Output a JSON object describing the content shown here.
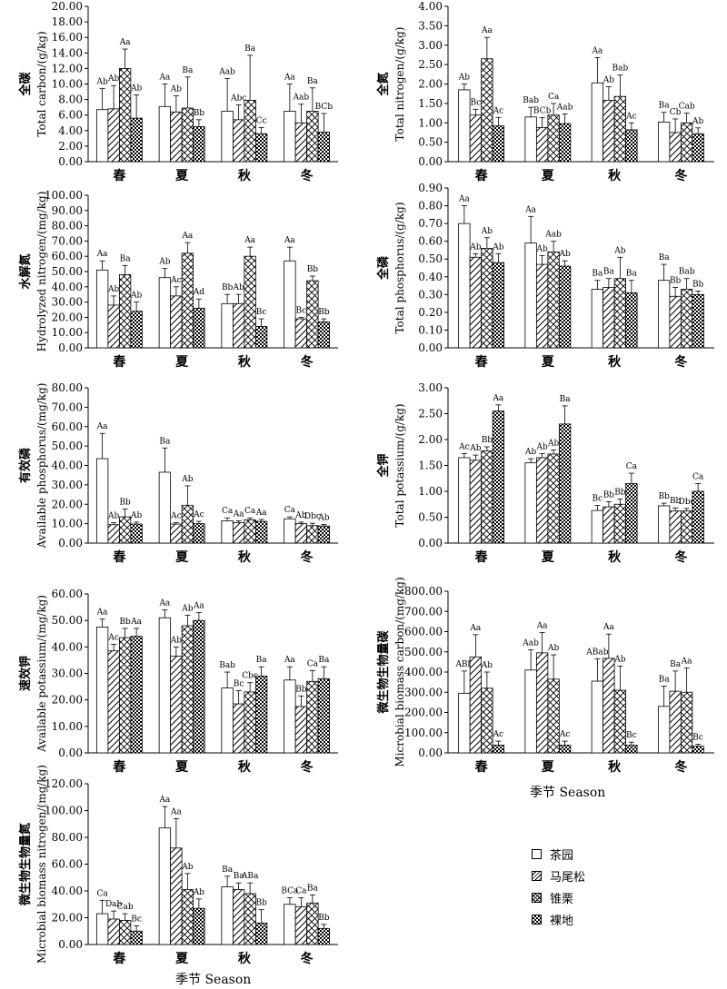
{
  "legend": {
    "items": [
      {
        "label": "茶园",
        "pattern": "blank"
      },
      {
        "label": "马尾松",
        "pattern": "diagonal"
      },
      {
        "label": "锥栗",
        "pattern": "crosshatch"
      },
      {
        "label": "裸地",
        "pattern": "checker"
      }
    ]
  },
  "x_axis_title_right": "季节 Season",
  "x_axis_title_bottom": "季节 Season",
  "chart_data": [
    {
      "type": "bar",
      "ylabel_cn": "全碳",
      "ylabel_en": "Total carbon/(g/kg)",
      "ylim": [
        0,
        20
      ],
      "yticks": [
        "0.00",
        "2.00",
        "4.00",
        "6.00",
        "8.00",
        "10.00",
        "12.00",
        "14.00",
        "16.00",
        "18.00",
        "20.00"
      ],
      "categories": [
        "春",
        "夏",
        "秋",
        "冬"
      ],
      "series": [
        {
          "name": "茶园",
          "values": [
            6.7,
            7.1,
            6.5,
            6.5
          ],
          "errors": [
            2.7,
            2.9,
            4.2,
            3.5
          ]
        },
        {
          "name": "马尾松",
          "values": [
            6.8,
            6.4,
            5.4,
            5.0
          ],
          "errors": [
            3.0,
            2.1,
            1.9,
            2.4
          ]
        },
        {
          "name": "锥栗",
          "values": [
            12.0,
            6.9,
            7.9,
            6.5
          ],
          "errors": [
            2.5,
            4.0,
            5.8,
            3.0
          ]
        },
        {
          "name": "裸地",
          "values": [
            5.6,
            4.5,
            3.6,
            3.8
          ],
          "errors": [
            3.0,
            0.9,
            0.8,
            2.4
          ]
        }
      ],
      "labels": [
        [
          "Ab",
          "Aa",
          "Aab",
          "Aa"
        ],
        [
          "Ab",
          "Ab",
          "Abc",
          "Aab"
        ],
        [
          "Aa",
          "Ba",
          "Ba",
          "Ba"
        ],
        [
          "Ab",
          "Bb",
          "Cc",
          "BCb"
        ]
      ],
      "xlabel": ""
    },
    {
      "type": "bar",
      "ylabel_cn": "全氮",
      "ylabel_en": "Total nitrogen/(g/kg)",
      "ylim": [
        0,
        4
      ],
      "yticks": [
        "0.00",
        "0.50",
        "1.00",
        "1.50",
        "2.00",
        "2.50",
        "3.00",
        "3.50",
        "4.00"
      ],
      "categories": [
        "春",
        "夏",
        "秋",
        "冬"
      ],
      "series": [
        {
          "name": "茶园",
          "values": [
            1.85,
            1.15,
            2.03,
            1.02
          ],
          "errors": [
            0.15,
            0.25,
            0.65,
            0.25
          ]
        },
        {
          "name": "马尾松",
          "values": [
            1.2,
            0.88,
            1.58,
            0.75
          ],
          "errors": [
            0.15,
            0.25,
            0.35,
            0.35
          ]
        },
        {
          "name": "锥栗",
          "values": [
            2.65,
            1.2,
            1.68,
            1.0
          ],
          "errors": [
            0.55,
            0.3,
            0.55,
            0.25
          ]
        },
        {
          "name": "裸地",
          "values": [
            0.92,
            0.98,
            0.82,
            0.72
          ],
          "errors": [
            0.22,
            0.25,
            0.18,
            0.15
          ]
        }
      ],
      "labels": [
        [
          "Ab",
          "Bab",
          "Aa",
          "Ba"
        ],
        [
          "Bc",
          "BCb",
          "Ab",
          "Cb"
        ],
        [
          "Aa",
          "Ca",
          "Bab",
          "Cab"
        ],
        [
          "Ac",
          "Aab",
          "Ac",
          "Ab"
        ]
      ],
      "xlabel": ""
    },
    {
      "type": "bar",
      "ylabel_cn": "水解氮",
      "ylabel_en": "Hydrolyzed nitrogen/(mg/kg)",
      "ylim": [
        0,
        100
      ],
      "yticks": [
        "0.00",
        "10.00",
        "20.00",
        "30.00",
        "40.00",
        "50.00",
        "60.00",
        "70.00",
        "80.00",
        "90.00",
        "100.00"
      ],
      "categories": [
        "春",
        "夏",
        "秋",
        "冬"
      ],
      "series": [
        {
          "name": "茶园",
          "values": [
            51,
            46,
            29,
            57
          ],
          "errors": [
            6,
            6,
            6,
            9
          ]
        },
        {
          "name": "马尾松",
          "values": [
            28,
            34,
            29,
            19
          ],
          "errors": [
            6,
            6,
            6,
            1
          ]
        },
        {
          "name": "锥栗",
          "values": [
            48,
            62,
            60,
            44
          ],
          "errors": [
            6,
            7,
            6,
            3
          ]
        },
        {
          "name": "裸地",
          "values": [
            24,
            26,
            14,
            17
          ],
          "errors": [
            6,
            6,
            5,
            2
          ]
        }
      ],
      "labels": [
        [
          "Aa",
          "Ab",
          "Bb",
          "Aa"
        ],
        [
          "Ab",
          "Ac",
          "Ab",
          "Bc"
        ],
        [
          "Ba",
          "Aa",
          "Aa",
          "Bb"
        ],
        [
          "Ab",
          "Ad",
          "Bc",
          "Bb"
        ]
      ],
      "xlabel": ""
    },
    {
      "type": "bar",
      "ylabel_cn": "全磷",
      "ylabel_en": "Total phosphorus/(g/kg)",
      "ylim": [
        0,
        0.9
      ],
      "yticks": [
        "0.00",
        "0.10",
        "0.20",
        "0.30",
        "0.40",
        "0.50",
        "0.60",
        "0.70",
        "0.80",
        "0.90"
      ],
      "categories": [
        "春",
        "夏",
        "秋",
        "冬"
      ],
      "series": [
        {
          "name": "茶园",
          "values": [
            0.7,
            0.59,
            0.33,
            0.38
          ],
          "errors": [
            0.1,
            0.15,
            0.05,
            0.09
          ]
        },
        {
          "name": "马尾松",
          "values": [
            0.51,
            0.47,
            0.34,
            0.29
          ],
          "errors": [
            0.02,
            0.05,
            0.05,
            0.05
          ]
        },
        {
          "name": "锥栗",
          "values": [
            0.56,
            0.54,
            0.39,
            0.33
          ],
          "errors": [
            0.06,
            0.06,
            0.12,
            0.06
          ]
        },
        {
          "name": "裸地",
          "values": [
            0.48,
            0.46,
            0.31,
            0.3
          ],
          "errors": [
            0.05,
            0.03,
            0.07,
            0.02
          ]
        }
      ],
      "labels": [
        [
          "Aa",
          "Aa",
          "Ba",
          "Ba"
        ],
        [
          "Ab",
          "Ab",
          "Ba",
          "Bb"
        ],
        [
          "Ab",
          "Aab",
          "Ab",
          "Bab"
        ],
        [
          "Ab",
          "Ab",
          "Ba",
          "Bb"
        ]
      ],
      "xlabel": ""
    },
    {
      "type": "bar",
      "ylabel_cn": "有效磷",
      "ylabel_en": "Available phosphorus/(mg/kg)",
      "ylim": [
        0,
        80
      ],
      "yticks": [
        "0.00",
        "10.00",
        "20.00",
        "30.00",
        "40.00",
        "50.00",
        "60.00",
        "70.00",
        "80.00"
      ],
      "categories": [
        "春",
        "夏",
        "秋",
        "冬"
      ],
      "series": [
        {
          "name": "茶园",
          "values": [
            43.5,
            36.5,
            11.5,
            12.5
          ],
          "errors": [
            13,
            12.5,
            1.5,
            1.0
          ]
        },
        {
          "name": "马尾松",
          "values": [
            9.5,
            9.8,
            10.5,
            10.0
          ],
          "errors": [
            1.0,
            0.8,
            1.0,
            0.8
          ]
        },
        {
          "name": "锥栗",
          "values": [
            13.5,
            19.5,
            12.0,
            9.0
          ],
          "errors": [
            4.0,
            10.0,
            1.0,
            1.2
          ]
        },
        {
          "name": "裸地",
          "values": [
            9.8,
            10.0,
            11.2,
            8.8
          ],
          "errors": [
            1.0,
            1.2,
            1.0,
            0.8
          ]
        }
      ],
      "labels": [
        [
          "Aa",
          "Ba",
          "Ca",
          "Ca"
        ],
        [
          "Ab",
          "Ac",
          "Aa",
          "Ab"
        ],
        [
          "Bb",
          "Ab",
          "Ca",
          "Dbc"
        ],
        [
          "Ab",
          "Ac",
          "Aa",
          "Ab"
        ]
      ],
      "xlabel": ""
    },
    {
      "type": "bar",
      "ylabel_cn": "全钾",
      "ylabel_en": "Total potassium/(g/kg)",
      "ylim": [
        0,
        3
      ],
      "yticks": [
        "0.00",
        "0.50",
        "1.00",
        "1.50",
        "2.00",
        "2.50",
        "3.00"
      ],
      "categories": [
        "春",
        "夏",
        "秋",
        "冬"
      ],
      "series": [
        {
          "name": "茶园",
          "values": [
            1.65,
            1.55,
            0.63,
            0.72
          ],
          "errors": [
            0.08,
            0.08,
            0.1,
            0.05
          ]
        },
        {
          "name": "马尾松",
          "values": [
            1.6,
            1.65,
            0.7,
            0.62
          ],
          "errors": [
            0.1,
            0.08,
            0.1,
            0.06
          ]
        },
        {
          "name": "锥栗",
          "values": [
            1.78,
            1.72,
            0.75,
            0.62
          ],
          "errors": [
            0.08,
            0.08,
            0.1,
            0.05
          ]
        },
        {
          "name": "裸地",
          "values": [
            2.55,
            2.3,
            1.15,
            1.0
          ],
          "errors": [
            0.12,
            0.35,
            0.2,
            0.15
          ]
        }
      ],
      "labels": [
        [
          "Ac",
          "Ab",
          "Bc",
          "Bb"
        ],
        [
          "Ab",
          "Ab",
          "Bb",
          "Bb"
        ],
        [
          "Bb",
          "Ab",
          "Bb",
          "Dbc"
        ],
        [
          "Aa",
          "Ba",
          "Ca",
          "Ca"
        ]
      ],
      "xlabel": ""
    },
    {
      "type": "bar",
      "ylabel_cn": "速效钾",
      "ylabel_en": "Available potassium/(mg/kg)",
      "ylim": [
        0,
        60
      ],
      "yticks": [
        "0.00",
        "10.00",
        "20.00",
        "30.00",
        "40.00",
        "50.00",
        "60.00"
      ],
      "categories": [
        "春",
        "夏",
        "秋",
        "冬"
      ],
      "series": [
        {
          "name": "茶园",
          "values": [
            47.5,
            51.0,
            24.5,
            27.5
          ],
          "errors": [
            3.0,
            3.0,
            6.0,
            5.0
          ]
        },
        {
          "name": "马尾松",
          "values": [
            38.5,
            36.5,
            18.5,
            17.5
          ],
          "errors": [
            2.5,
            3.5,
            5.0,
            4.0
          ]
        },
        {
          "name": "锥栗",
          "values": [
            43.5,
            48.0,
            23.0,
            27.0
          ],
          "errors": [
            3.5,
            4.0,
            3.5,
            4.0
          ]
        },
        {
          "name": "裸地",
          "values": [
            44.0,
            50.0,
            29.0,
            28.0
          ],
          "errors": [
            3.0,
            3.0,
            3.5,
            4.5
          ]
        }
      ],
      "labels": [
        [
          "Aa",
          "Aa",
          "Bab",
          "Aa"
        ],
        [
          "Ac",
          "Ab",
          "Bc",
          "Bb"
        ],
        [
          "Bb",
          "Ab",
          "Cbc",
          "Ca"
        ],
        [
          "Aa",
          "Aa",
          "Ba",
          "Ba"
        ]
      ],
      "xlabel": ""
    },
    {
      "type": "bar",
      "ylabel_cn": "微生物生物量碳",
      "ylabel_en": "Microbial biomass carbon/(mg/kg)",
      "ylim": [
        0,
        800
      ],
      "yticks": [
        "0.00",
        "100.00",
        "200.00",
        "300.00",
        "400.00",
        "500.00",
        "600.00",
        "700.00",
        "800.00"
      ],
      "categories": [
        "春",
        "夏",
        "秋",
        "冬"
      ],
      "series": [
        {
          "name": "茶园",
          "values": [
            295,
            410,
            355,
            230
          ],
          "errors": [
            110,
            100,
            110,
            100
          ]
        },
        {
          "name": "马尾松",
          "values": [
            475,
            495,
            468,
            305
          ],
          "errors": [
            110,
            100,
            120,
            100
          ]
        },
        {
          "name": "锥栗",
          "values": [
            320,
            365,
            310,
            300
          ],
          "errors": [
            80,
            120,
            120,
            120
          ]
        },
        {
          "name": "裸地",
          "values": [
            38,
            38,
            38,
            33
          ],
          "errors": [
            20,
            20,
            15,
            10
          ]
        }
      ],
      "labels": [
        [
          "ABb",
          "Aab",
          "ABab",
          "Ba"
        ],
        [
          "Aa",
          "Aa",
          "Aa",
          "Ba"
        ],
        [
          "Ab",
          "Ab",
          "Ab",
          "Aa"
        ],
        [
          "Ac",
          "Ac",
          "Bc",
          "Bc"
        ]
      ],
      "xlabel": "季节 Season"
    },
    {
      "type": "bar",
      "ylabel_cn": "微生物生物量氮",
      "ylabel_en": "Microbial biomass nitrogen/(mg/kg)",
      "ylim": [
        0,
        120
      ],
      "yticks": [
        "0.00",
        "20.00",
        "40.00",
        "60.00",
        "80.00",
        "100.00",
        "120.00"
      ],
      "categories": [
        "春",
        "夏",
        "秋",
        "冬"
      ],
      "series": [
        {
          "name": "茶园",
          "values": [
            23,
            87,
            43,
            30
          ],
          "errors": [
            10,
            16,
            8,
            5
          ]
        },
        {
          "name": "马尾松",
          "values": [
            19,
            72,
            41,
            28
          ],
          "errors": [
            6,
            22,
            5,
            7
          ]
        },
        {
          "name": "锥栗",
          "values": [
            18,
            41,
            38,
            31
          ],
          "errors": [
            5,
            12,
            8,
            6
          ]
        },
        {
          "name": "裸地",
          "values": [
            10,
            27,
            16,
            12
          ],
          "errors": [
            4,
            7,
            10,
            3
          ]
        }
      ],
      "labels": [
        [
          "Ca",
          "Aa",
          "Ba",
          "BCa"
        ],
        [
          "Dab",
          "Aa",
          "Ba",
          "Ca"
        ],
        [
          "Cab",
          "Ab",
          "ABa",
          "Ba"
        ],
        [
          "Bc",
          "Ab",
          "Bb",
          "Bb"
        ]
      ],
      "xlabel": "季节 Season"
    }
  ]
}
